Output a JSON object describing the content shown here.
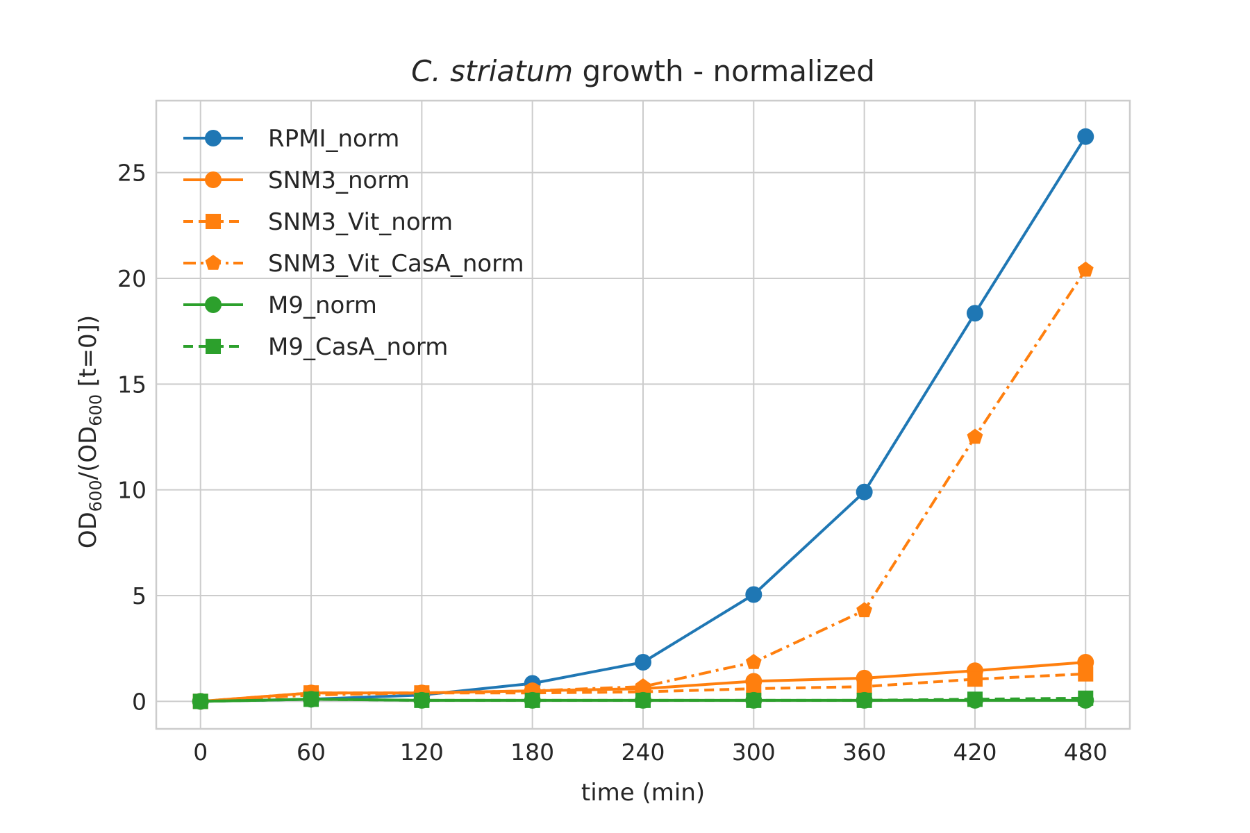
{
  "colors": {
    "blue": "#1f77b4",
    "orange": "#ff7f0e",
    "green": "#2ca02c",
    "grid": "#cccccc",
    "text": "#262626"
  },
  "chart_data": {
    "type": "line",
    "title_italic": "C. striatum",
    "title_rest": " growth - normalized",
    "xlabel": "time (min)",
    "ylabel": {
      "base": "OD",
      "sub": "600",
      "mid": "/(OD",
      "sub2": "600",
      "end": " [t=0])"
    },
    "x": [
      0,
      60,
      120,
      180,
      240,
      300,
      360,
      420,
      480
    ],
    "xlim": [
      -24,
      504
    ],
    "ylim": [
      -1.3,
      28.4
    ],
    "xticks": [
      0,
      60,
      120,
      180,
      240,
      300,
      360,
      420,
      480
    ],
    "yticks": [
      0,
      5,
      10,
      15,
      20,
      25
    ],
    "grid": true,
    "legend_position": "top-left",
    "series": [
      {
        "name": "RPMI_norm",
        "color": "blue",
        "linestyle": "solid",
        "marker": "circle",
        "values": [
          0,
          0.1,
          0.3,
          0.85,
          1.85,
          5.05,
          9.9,
          18.35,
          26.7
        ]
      },
      {
        "name": "SNM3_norm",
        "color": "orange",
        "linestyle": "solid",
        "marker": "circle",
        "values": [
          0,
          0.4,
          0.4,
          0.5,
          0.6,
          0.95,
          1.1,
          1.45,
          1.85
        ]
      },
      {
        "name": "SNM3_Vit_norm",
        "color": "orange",
        "linestyle": "dashed",
        "marker": "square",
        "values": [
          0,
          0.4,
          0.4,
          0.4,
          0.45,
          0.6,
          0.7,
          1.05,
          1.3
        ]
      },
      {
        "name": "SNM3_Vit_CasA_norm",
        "color": "orange",
        "linestyle": "dashdot",
        "marker": "pentagon",
        "values": [
          0,
          0.3,
          0.4,
          0.5,
          0.7,
          1.85,
          4.3,
          12.5,
          20.4
        ]
      },
      {
        "name": "M9_norm",
        "color": "green",
        "linestyle": "solid",
        "marker": "circle",
        "values": [
          0,
          0.1,
          0.05,
          0.05,
          0.05,
          0.05,
          0.05,
          0.05,
          0.05
        ]
      },
      {
        "name": "M9_CasA_norm",
        "color": "green",
        "linestyle": "dashed",
        "marker": "square",
        "values": [
          0,
          0.1,
          0.05,
          0.05,
          0.05,
          0.05,
          0.05,
          0.1,
          0.15
        ]
      }
    ]
  }
}
